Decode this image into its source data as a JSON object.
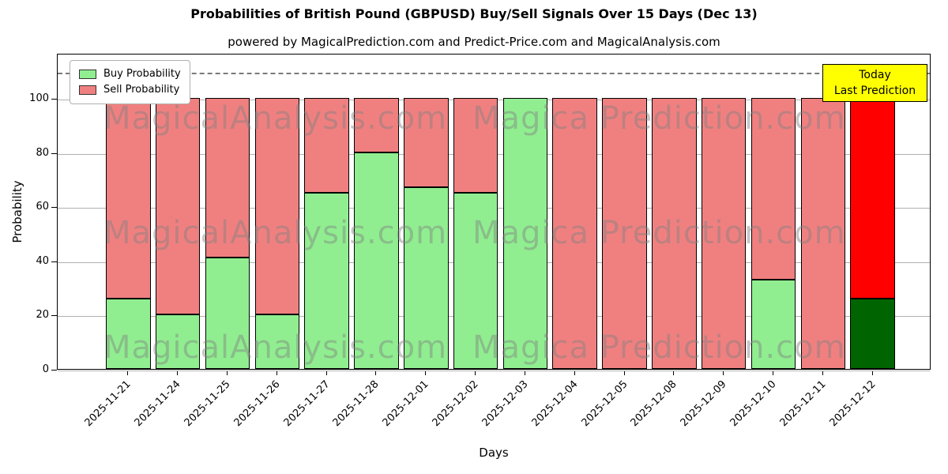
{
  "chart_data": {
    "type": "bar",
    "stacked": true,
    "title": "Probabilities of British Pound (GBPUSD) Buy/Sell Signals Over 15 Days (Dec 13)",
    "subtitle": "powered by MagicalPrediction.com and Predict-Price.com and MagicalAnalysis.com",
    "xlabel": "Days",
    "ylabel": "Probability",
    "ylim": [
      0,
      116.6
    ],
    "yticks": [
      0,
      20,
      40,
      60,
      80,
      100
    ],
    "dashed_line_y": 110,
    "grid": true,
    "legend_position": "upper left",
    "categories": [
      "2025-11-21",
      "2025-11-24",
      "2025-11-25",
      "2025-11-26",
      "2025-11-27",
      "2025-11-28",
      "2025-12-01",
      "2025-12-02",
      "2025-12-03",
      "2025-12-04",
      "2025-12-05",
      "2025-12-08",
      "2025-12-09",
      "2025-12-10",
      "2025-12-11",
      "2025-12-12"
    ],
    "series": [
      {
        "name": "Buy Probability",
        "color": "#90EE90",
        "values": [
          26,
          20,
          41,
          20,
          65,
          80,
          67,
          65,
          100,
          0,
          0,
          0,
          0,
          33,
          0,
          26
        ]
      },
      {
        "name": "Sell Probability",
        "color": "#F08080",
        "values": [
          74,
          80,
          59,
          80,
          35,
          20,
          33,
          35,
          0,
          100,
          100,
          100,
          100,
          67,
          100,
          74
        ]
      }
    ],
    "today_colors": {
      "buy": "#006400",
      "sell": "#FF0000"
    },
    "annotation": {
      "line1": "Today",
      "line2": "Last Prediction",
      "bg": "#FFFF00"
    },
    "watermarks": [
      "MagicalAnalysis.com",
      "Magica Prediction.com"
    ]
  }
}
